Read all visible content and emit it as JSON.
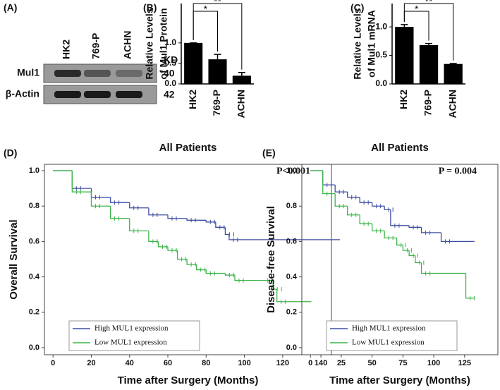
{
  "chart_data": [
    {
      "type": "blot",
      "panel": "(A)",
      "categories": [
        "HK2",
        "769-P",
        "ACHN"
      ],
      "unit_label": "KD",
      "rows": [
        {
          "name": "Mul1",
          "kd": 40
        },
        {
          "name": "β-Actin",
          "kd": 42
        }
      ]
    },
    {
      "type": "bar",
      "panel": "(B)",
      "ylabel": [
        "Relative Levels",
        "of Mul1 Protein"
      ],
      "categories": [
        "HK2",
        "769-P",
        "ACHN"
      ],
      "values": [
        1.0,
        0.6,
        0.2
      ],
      "errors": [
        0,
        0.12,
        0.08
      ],
      "color": "#000000",
      "ylim": [
        0,
        1.96
      ],
      "yticks": [
        {
          "value": 0,
          "label": "0.0"
        },
        0.5,
        {
          "value": 1,
          "label": "1.0"
        }
      ],
      "annotations": [
        "*",
        "**"
      ]
    },
    {
      "type": "bar",
      "panel": "(C)",
      "ylabel": [
        "Relative Levels",
        "of Mul1 mRNA"
      ],
      "categories": [
        "HK2",
        "769-P",
        "ACHN"
      ],
      "values": [
        1.0,
        0.68,
        0.35
      ],
      "errors": [
        0.04,
        0.03,
        0.01
      ],
      "color": "#000000",
      "ylim": [
        0,
        1.41
      ],
      "yticks": [
        {
          "value": 0,
          "label": "0.0"
        },
        0.5,
        {
          "value": 1,
          "label": "1.0"
        }
      ],
      "annotations": [
        "*",
        "**"
      ]
    },
    {
      "type": "step",
      "panel": "(D)",
      "title": "All Patients",
      "xlabel": "Time after Surgery (Months)",
      "ylabel": "Overall Survival",
      "annotation": "P<0.001",
      "legend": "lower left",
      "xlim": [
        -4.5,
        145.5
      ],
      "ylim": [
        -0.04,
        1.036
      ],
      "xticks": [
        0,
        20,
        40,
        60,
        80,
        100,
        120,
        140
      ],
      "yticks": [
        {
          "value": 0,
          "label": "0.0"
        },
        0.2,
        0.4,
        0.6,
        0.8,
        {
          "value": 1,
          "label": "1.0"
        }
      ],
      "series": [
        {
          "name": "High MUL1 expression",
          "color": "#3f4fa3",
          "x": [
            0,
            10,
            20,
            30,
            40,
            50,
            60,
            70,
            80,
            85,
            90,
            92,
            150
          ],
          "values": [
            1.0,
            0.9,
            0.85,
            0.82,
            0.79,
            0.75,
            0.73,
            0.72,
            0.71,
            0.68,
            0.64,
            0.61,
            0.61
          ]
        },
        {
          "name": "Low MUL1 expression",
          "color": "#3cb54a",
          "x": [
            0,
            10,
            20,
            30,
            40,
            50,
            55,
            60,
            65,
            70,
            75,
            80,
            90,
            95,
            110,
            115,
            117,
            135
          ],
          "values": [
            1.0,
            0.88,
            0.8,
            0.73,
            0.66,
            0.6,
            0.57,
            0.55,
            0.5,
            0.47,
            0.44,
            0.42,
            0.41,
            0.38,
            0.38,
            0.33,
            0.26,
            0.26
          ]
        }
      ]
    },
    {
      "type": "step",
      "panel": "(E)",
      "title": "All Patients",
      "xlabel": "Time after Surgery (Months)",
      "ylabel": "Disease-free Survival",
      "annotation": "P = 0.004",
      "legend": "lower left",
      "xlim": [
        -7,
        152
      ],
      "ylim": [
        -0.04,
        1.036
      ],
      "xticks": [
        0,
        25,
        50,
        75,
        100,
        125
      ],
      "yticks": [
        {
          "value": 0,
          "label": "0.0"
        },
        0.2,
        0.4,
        0.6,
        0.8,
        {
          "value": 1,
          "label": "1.0"
        }
      ],
      "series": [
        {
          "name": "High MUL1 expression",
          "color": "#3f4fa3",
          "x": [
            0,
            10,
            20,
            30,
            40,
            50,
            60,
            65,
            80,
            90,
            106,
            133
          ],
          "values": [
            1.0,
            0.92,
            0.88,
            0.85,
            0.82,
            0.8,
            0.78,
            0.69,
            0.68,
            0.65,
            0.6,
            0.6
          ]
        },
        {
          "name": "Low MUL1 expression",
          "color": "#3cb54a",
          "x": [
            0,
            10,
            20,
            30,
            40,
            50,
            60,
            70,
            75,
            80,
            85,
            90,
            126,
            133
          ],
          "values": [
            1.0,
            0.87,
            0.8,
            0.75,
            0.7,
            0.66,
            0.62,
            0.58,
            0.55,
            0.52,
            0.48,
            0.42,
            0.28,
            0.28
          ]
        }
      ]
    }
  ]
}
